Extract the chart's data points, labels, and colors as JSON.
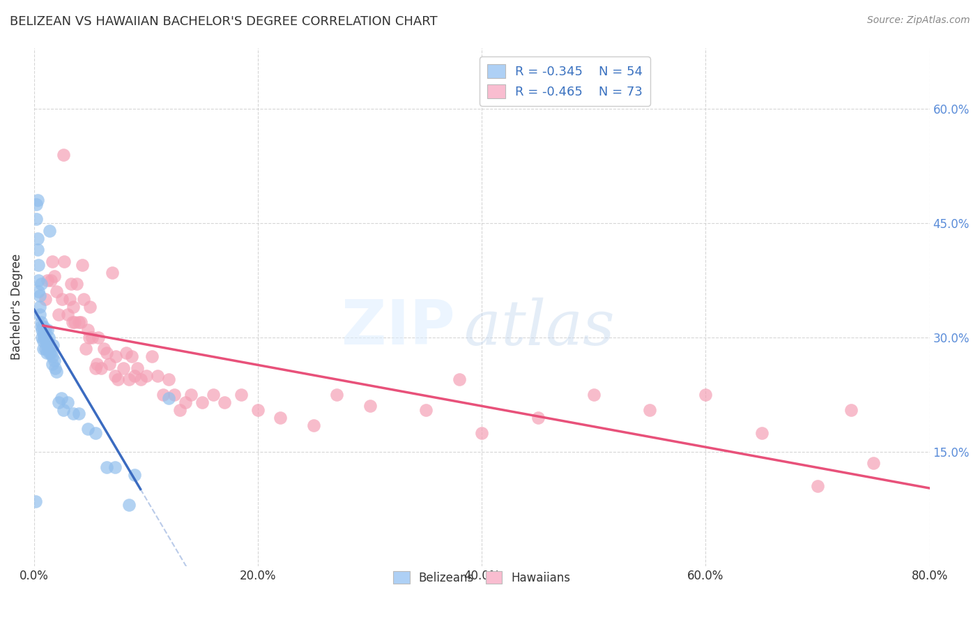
{
  "title": "BELIZEAN VS HAWAIIAN BACHELOR'S DEGREE CORRELATION CHART",
  "source": "Source: ZipAtlas.com",
  "ylabel": "Bachelor's Degree",
  "xlabel_ticks": [
    "0.0%",
    "20.0%",
    "40.0%",
    "60.0%",
    "80.0%"
  ],
  "xlabel_vals": [
    0.0,
    0.2,
    0.4,
    0.6,
    0.8
  ],
  "ylabel_ticks": [
    "15.0%",
    "30.0%",
    "45.0%",
    "60.0%"
  ],
  "ylabel_vals": [
    0.15,
    0.3,
    0.45,
    0.6
  ],
  "ylim": [
    0.0,
    0.68
  ],
  "xlim": [
    0.0,
    0.8
  ],
  "belizean_R": -0.345,
  "belizean_N": 54,
  "hawaiian_R": -0.465,
  "hawaiian_N": 73,
  "belizean_color": "#92BFED",
  "hawaiian_color": "#F4A0B5",
  "belizean_line_color": "#3B6BC0",
  "hawaiian_line_color": "#E8517A",
  "legend_blue_fill": "#AED0F5",
  "legend_pink_fill": "#F9BDD0",
  "belizean_x": [
    0.001,
    0.002,
    0.002,
    0.003,
    0.003,
    0.003,
    0.004,
    0.004,
    0.004,
    0.005,
    0.005,
    0.005,
    0.006,
    0.006,
    0.006,
    0.007,
    0.007,
    0.008,
    0.008,
    0.008,
    0.008,
    0.009,
    0.009,
    0.01,
    0.01,
    0.01,
    0.011,
    0.011,
    0.012,
    0.012,
    0.013,
    0.013,
    0.014,
    0.014,
    0.015,
    0.016,
    0.016,
    0.017,
    0.018,
    0.019,
    0.02,
    0.022,
    0.024,
    0.026,
    0.03,
    0.035,
    0.04,
    0.048,
    0.055,
    0.065,
    0.072,
    0.085,
    0.09,
    0.12
  ],
  "belizean_y": [
    0.085,
    0.475,
    0.455,
    0.48,
    0.43,
    0.415,
    0.395,
    0.375,
    0.36,
    0.355,
    0.34,
    0.33,
    0.37,
    0.32,
    0.315,
    0.31,
    0.3,
    0.315,
    0.305,
    0.295,
    0.285,
    0.31,
    0.3,
    0.31,
    0.3,
    0.285,
    0.28,
    0.29,
    0.31,
    0.295,
    0.3,
    0.285,
    0.28,
    0.44,
    0.28,
    0.275,
    0.265,
    0.29,
    0.27,
    0.26,
    0.255,
    0.215,
    0.22,
    0.205,
    0.215,
    0.2,
    0.2,
    0.18,
    0.175,
    0.13,
    0.13,
    0.08,
    0.12,
    0.22
  ],
  "hawaiian_x": [
    0.01,
    0.012,
    0.015,
    0.016,
    0.018,
    0.02,
    0.022,
    0.025,
    0.026,
    0.027,
    0.03,
    0.032,
    0.033,
    0.034,
    0.035,
    0.036,
    0.038,
    0.04,
    0.042,
    0.043,
    0.044,
    0.046,
    0.048,
    0.049,
    0.05,
    0.052,
    0.055,
    0.056,
    0.057,
    0.06,
    0.062,
    0.065,
    0.067,
    0.07,
    0.072,
    0.073,
    0.075,
    0.08,
    0.082,
    0.085,
    0.087,
    0.09,
    0.092,
    0.095,
    0.1,
    0.105,
    0.11,
    0.115,
    0.12,
    0.125,
    0.13,
    0.135,
    0.14,
    0.15,
    0.16,
    0.17,
    0.185,
    0.2,
    0.22,
    0.25,
    0.27,
    0.3,
    0.35,
    0.38,
    0.4,
    0.45,
    0.5,
    0.55,
    0.6,
    0.65,
    0.7,
    0.73,
    0.75
  ],
  "hawaiian_y": [
    0.35,
    0.375,
    0.375,
    0.4,
    0.38,
    0.36,
    0.33,
    0.35,
    0.54,
    0.4,
    0.33,
    0.35,
    0.37,
    0.32,
    0.34,
    0.32,
    0.37,
    0.32,
    0.32,
    0.395,
    0.35,
    0.285,
    0.31,
    0.3,
    0.34,
    0.3,
    0.26,
    0.265,
    0.3,
    0.26,
    0.285,
    0.28,
    0.265,
    0.385,
    0.25,
    0.275,
    0.245,
    0.26,
    0.28,
    0.245,
    0.275,
    0.25,
    0.26,
    0.245,
    0.25,
    0.275,
    0.25,
    0.225,
    0.245,
    0.225,
    0.205,
    0.215,
    0.225,
    0.215,
    0.225,
    0.215,
    0.225,
    0.205,
    0.195,
    0.185,
    0.225,
    0.21,
    0.205,
    0.245,
    0.175,
    0.195,
    0.225,
    0.205,
    0.225,
    0.175,
    0.105,
    0.205,
    0.135
  ],
  "bel_line_x_start": 0.0,
  "bel_line_x_solid_end": 0.095,
  "bel_line_x_dash_end": 0.32,
  "haw_line_x_start": 0.008,
  "haw_line_x_end": 0.8,
  "marker_size": 180,
  "marker_alpha": 0.7,
  "grid_color": "#cccccc",
  "grid_style": "--",
  "grid_alpha": 0.8,
  "title_fontsize": 13,
  "axis_label_fontsize": 12,
  "tick_fontsize": 12,
  "right_tick_color": "#5b8dd9",
  "source_color": "#888888"
}
